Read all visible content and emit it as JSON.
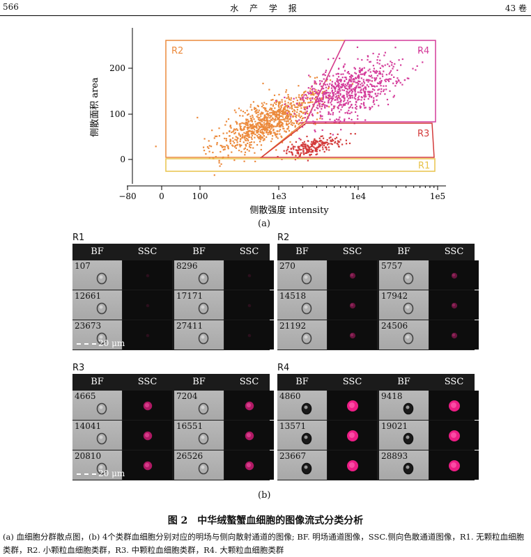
{
  "header": {
    "page_number": "566",
    "journal": "水 产 学 报",
    "volume": "43 卷"
  },
  "figure": {
    "panel_a_label": "(a)",
    "panel_b_label": "(b)",
    "scatter": {
      "ylabel": "侧散面积 area",
      "xlabel": "侧散强度 intensity",
      "y_ticks": [
        "0",
        "100",
        "200"
      ],
      "x_ticks": [
        "−80",
        "0",
        "100",
        "1e3",
        "1e4",
        "1e5"
      ],
      "regions": [
        {
          "name": "R1",
          "color": "#e8c34a"
        },
        {
          "name": "R2",
          "color": "#ec8a3c"
        },
        {
          "name": "R3",
          "color": "#d33a3a"
        },
        {
          "name": "R4",
          "color": "#d43c9a"
        }
      ]
    },
    "column_headers": [
      "BF",
      "SSC",
      "BF",
      "SSC"
    ],
    "scale_bar": "20 μm",
    "groups": [
      {
        "name": "R1",
        "ssc_level": 0.05,
        "cells": [
          "107",
          "8296",
          "12661",
          "17171",
          "23673",
          "27411"
        ]
      },
      {
        "name": "R2",
        "ssc_level": 0.35,
        "cells": [
          "270",
          "5757",
          "14518",
          "17942",
          "21192",
          "24506"
        ]
      },
      {
        "name": "R3",
        "ssc_level": 0.7,
        "cells": [
          "4665",
          "7204",
          "14041",
          "16551",
          "20810",
          "26526"
        ]
      },
      {
        "name": "R4",
        "ssc_level": 1.0,
        "cells": [
          "4860",
          "9418",
          "13571",
          "19021",
          "23667",
          "28893"
        ]
      }
    ]
  },
  "caption": {
    "title": "图 2　中华绒螯蟹血细胞的图像流式分类分析",
    "text": "(a) 血细胞分群散点图，(b) 4个类群血细胞分别对应的明场与侧向散射通道的图像; BF. 明场通道图像，SSC.侧向色散通道图像，R1. 无颗粒血细胞类群，R2. 小颗粒血细胞类群，R3. 中颗粒血细胞类群，R4. 大颗粒血细胞类群"
  }
}
